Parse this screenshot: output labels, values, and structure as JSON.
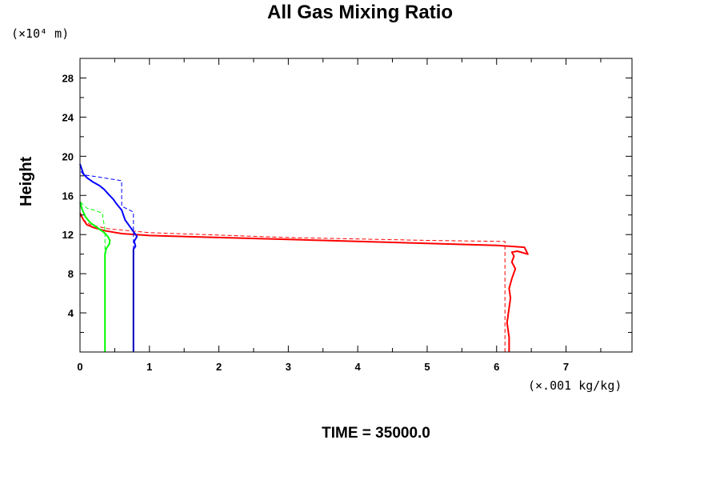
{
  "chart_data": {
    "type": "line",
    "title": "All Gas Mixing Ratio",
    "ylabel": "Height",
    "y_scale_label": "(×10⁴ m)",
    "x_scale_label": "(×.001 kg/kg)",
    "footer": "TIME = 35000.0",
    "xlim": [
      0,
      7.95
    ],
    "ylim": [
      0,
      30
    ],
    "x_ticks": [
      "0",
      "1",
      "2",
      "3",
      "4",
      "5",
      "6",
      "7"
    ],
    "y_ticks": [
      "4",
      "8",
      "12",
      "16",
      "20",
      "24",
      "28"
    ],
    "series": [
      {
        "color": "#ff0000",
        "style": "solid",
        "width": 2,
        "x": [
          6.18,
          6.18,
          6.15,
          6.18,
          6.2,
          6.18,
          6.22,
          6.27,
          6.22,
          6.25,
          6.22,
          6.3,
          6.45,
          6.4,
          6.0,
          5.0,
          4.0,
          3.0,
          2.0,
          1.0,
          0.6,
          0.35,
          0.2,
          0.1,
          0.05,
          0.0
        ],
        "y": [
          0.0,
          1.5,
          3.0,
          4.5,
          5.5,
          6.5,
          7.5,
          8.5,
          9.2,
          9.8,
          10.2,
          10.3,
          10.0,
          10.7,
          10.9,
          11.1,
          11.3,
          11.5,
          11.7,
          11.9,
          12.1,
          12.4,
          12.7,
          13.0,
          13.5,
          14.2
        ]
      },
      {
        "color": "#ff0000",
        "style": "dashed",
        "width": 1,
        "x": [
          6.12,
          6.12,
          6.12,
          5.0,
          3.0,
          1.0,
          0.4,
          0.15,
          0.05,
          0.0
        ],
        "y": [
          0.0,
          9.5,
          11.3,
          11.4,
          11.7,
          12.2,
          12.6,
          13.0,
          13.5,
          14.0
        ]
      },
      {
        "color": "#0000ff",
        "style": "solid",
        "width": 2,
        "x": [
          0.77,
          0.77,
          0.77,
          0.8,
          0.78,
          0.82,
          0.75,
          0.65,
          0.6,
          0.52,
          0.48,
          0.4,
          0.35,
          0.28,
          0.18,
          0.1,
          0.05,
          0.02,
          0.0
        ],
        "y": [
          0.0,
          6.0,
          10.5,
          10.8,
          11.3,
          11.8,
          12.5,
          13.5,
          14.5,
          15.2,
          15.6,
          16.2,
          16.6,
          17.0,
          17.4,
          17.8,
          18.2,
          18.8,
          19.2
        ]
      },
      {
        "color": "#0000ff",
        "style": "dashed",
        "width": 1,
        "x": [
          0.77,
          0.77,
          0.77,
          0.6,
          0.6,
          0.6,
          0.25,
          0.05,
          0.0
        ],
        "y": [
          0.0,
          12.5,
          14.3,
          14.9,
          15.5,
          17.5,
          17.9,
          18.1,
          18.6
        ]
      },
      {
        "color": "#000080",
        "style": "solid",
        "width": 1,
        "x": [
          0.77,
          0.77
        ],
        "y": [
          0.0,
          10.5
        ]
      },
      {
        "color": "#00ff00",
        "style": "solid",
        "width": 2,
        "x": [
          0.36,
          0.36,
          0.36,
          0.38,
          0.42,
          0.43,
          0.4,
          0.35,
          0.25,
          0.15,
          0.08,
          0.03,
          0.0
        ],
        "y": [
          0.0,
          5.0,
          10.0,
          10.6,
          11.0,
          11.4,
          11.8,
          12.2,
          12.7,
          13.2,
          13.8,
          14.6,
          15.3
        ]
      },
      {
        "color": "#00ff00",
        "style": "dashed",
        "width": 1,
        "x": [
          0.36,
          0.36,
          0.36,
          0.32,
          0.2,
          0.1,
          0.05,
          0.0
        ],
        "y": [
          0.0,
          9.0,
          12.5,
          14.2,
          14.5,
          14.7,
          15.0,
          15.4
        ]
      },
      {
        "color": "#00ff00",
        "style": "solid",
        "width": 1,
        "x": [
          0.0,
          0.0
        ],
        "y": [
          15.3,
          30.0
        ]
      }
    ]
  }
}
